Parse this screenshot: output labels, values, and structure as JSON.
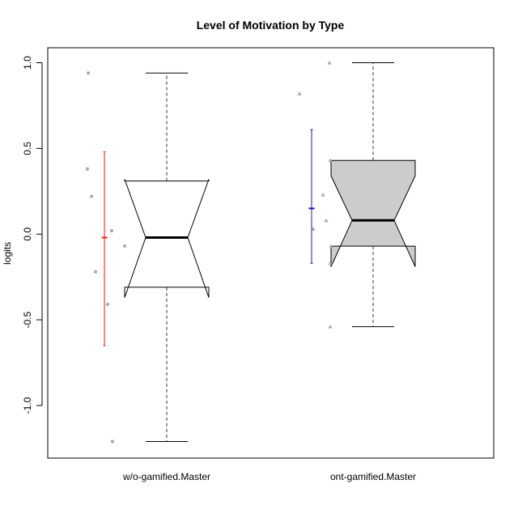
{
  "chart_data": {
    "type": "box",
    "title": "Level of Motivation by Type",
    "xlabel": "",
    "ylabel": "logits",
    "ylim": [
      -1.31,
      1.1
    ],
    "yticks": [
      -1.0,
      -0.5,
      0.0,
      0.5,
      1.0
    ],
    "ytick_labels": [
      "-1.0",
      "-0.5",
      "0.0",
      "0.5",
      "1.0"
    ],
    "categories": [
      "w/o-gamified.Master",
      "ont-gamified.Master"
    ],
    "boxes": [
      {
        "name": "w/o-gamified.Master",
        "whisker_low": -1.21,
        "q1": -0.31,
        "median": -0.02,
        "q3": 0.31,
        "whisker_high": 0.94,
        "notch_low": -0.37,
        "notch_high": 0.32,
        "fill": "#ffffff",
        "points": [
          0.94,
          0.38,
          0.22,
          0.02,
          -0.07,
          -0.22,
          -0.41,
          -1.21
        ],
        "mean": -0.02,
        "ci_low": -0.65,
        "ci_high": 0.48,
        "ci_color": "#e31a1c",
        "point_shape": "circle"
      },
      {
        "name": "ont-gamified.Master",
        "whisker_low": -0.54,
        "q1": -0.07,
        "median": 0.08,
        "q3": 0.43,
        "whisker_high": 1.0,
        "notch_low": -0.19,
        "notch_high": 0.34,
        "fill": "#cccccc",
        "points": [
          1.0,
          0.82,
          0.43,
          0.23,
          0.08,
          0.03,
          -0.07,
          -0.17,
          -0.54
        ],
        "mean": 0.15,
        "ci_low": -0.17,
        "ci_high": 0.61,
        "ci_color": "#1a1ab0",
        "point_shape": "triangle"
      }
    ],
    "grid": false,
    "legend": "none"
  }
}
